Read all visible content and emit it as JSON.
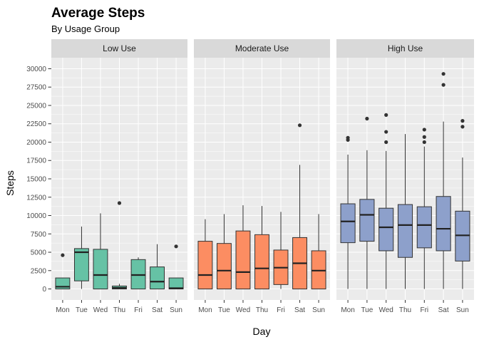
{
  "chart_data": {
    "type": "boxplot",
    "title": "Average Steps",
    "subtitle": "By Usage Group",
    "xlabel": "Day",
    "ylabel": "Steps",
    "ylim": [
      -1500,
      31500
    ],
    "yticks": [
      0,
      2500,
      5000,
      7500,
      10000,
      12500,
      15000,
      17500,
      20000,
      22500,
      25000,
      27500,
      30000
    ],
    "categories": [
      "Mon",
      "Tue",
      "Wed",
      "Thu",
      "Fri",
      "Sat",
      "Sun"
    ],
    "grid": true,
    "panels": [
      {
        "name": "Low Use",
        "color": "#66c2a5",
        "boxes": [
          {
            "day": "Mon",
            "low": 0,
            "q1": 0,
            "median": 300,
            "q3": 1500,
            "high": 1500,
            "outliers": [
              4600
            ]
          },
          {
            "day": "Tue",
            "low": 0,
            "q1": 1100,
            "median": 5000,
            "q3": 5500,
            "high": 8500,
            "outliers": []
          },
          {
            "day": "Wed",
            "low": 0,
            "q1": 0,
            "median": 1900,
            "q3": 5400,
            "high": 10300,
            "outliers": []
          },
          {
            "day": "Thu",
            "low": 0,
            "q1": 0,
            "median": 150,
            "q3": 400,
            "high": 700,
            "outliers": [
              11700
            ]
          },
          {
            "day": "Fri",
            "low": 0,
            "q1": 0,
            "median": 1900,
            "q3": 4000,
            "high": 4300,
            "outliers": []
          },
          {
            "day": "Sat",
            "low": 0,
            "q1": 0,
            "median": 1000,
            "q3": 3000,
            "high": 6100,
            "outliers": []
          },
          {
            "day": "Sun",
            "low": 0,
            "q1": 0,
            "median": 100,
            "q3": 1500,
            "high": 1500,
            "outliers": [
              5800
            ]
          }
        ]
      },
      {
        "name": "Moderate Use",
        "color": "#fc8d62",
        "boxes": [
          {
            "day": "Mon",
            "low": 0,
            "q1": 0,
            "median": 1900,
            "q3": 6500,
            "high": 9500,
            "outliers": []
          },
          {
            "day": "Tue",
            "low": 0,
            "q1": 0,
            "median": 2500,
            "q3": 6200,
            "high": 10200,
            "outliers": []
          },
          {
            "day": "Wed",
            "low": 0,
            "q1": 0,
            "median": 2300,
            "q3": 7900,
            "high": 11400,
            "outliers": []
          },
          {
            "day": "Thu",
            "low": 0,
            "q1": 0,
            "median": 2800,
            "q3": 7400,
            "high": 11300,
            "outliers": []
          },
          {
            "day": "Fri",
            "low": 0,
            "q1": 600,
            "median": 2900,
            "q3": 5300,
            "high": 10500,
            "outliers": []
          },
          {
            "day": "Sat",
            "low": 0,
            "q1": 0,
            "median": 3500,
            "q3": 7000,
            "high": 16900,
            "outliers": [
              22300
            ]
          },
          {
            "day": "Sun",
            "low": 0,
            "q1": 0,
            "median": 2500,
            "q3": 5200,
            "high": 10200,
            "outliers": []
          }
        ]
      },
      {
        "name": "High Use",
        "color": "#8da0cb",
        "boxes": [
          {
            "day": "Mon",
            "low": 0,
            "q1": 6300,
            "median": 9200,
            "q3": 11600,
            "high": 18300,
            "outliers": [
              20300,
              20600
            ]
          },
          {
            "day": "Tue",
            "low": 0,
            "q1": 6500,
            "median": 10100,
            "q3": 12200,
            "high": 18900,
            "outliers": [
              23200
            ]
          },
          {
            "day": "Wed",
            "low": 0,
            "q1": 5200,
            "median": 8400,
            "q3": 11000,
            "high": 18800,
            "outliers": [
              20000,
              21400,
              23700
            ]
          },
          {
            "day": "Thu",
            "low": 0,
            "q1": 4300,
            "median": 8700,
            "q3": 11500,
            "high": 21100,
            "outliers": []
          },
          {
            "day": "Fri",
            "low": 0,
            "q1": 5600,
            "median": 8700,
            "q3": 11200,
            "high": 19400,
            "outliers": [
              20000,
              20700,
              21700
            ]
          },
          {
            "day": "Sat",
            "low": 0,
            "q1": 5200,
            "median": 8200,
            "q3": 12600,
            "high": 22800,
            "outliers": [
              27800,
              29300
            ]
          },
          {
            "day": "Sun",
            "low": 0,
            "q1": 3800,
            "median": 7300,
            "q3": 10600,
            "high": 17900,
            "outliers": [
              22100,
              22900
            ]
          }
        ]
      }
    ]
  }
}
